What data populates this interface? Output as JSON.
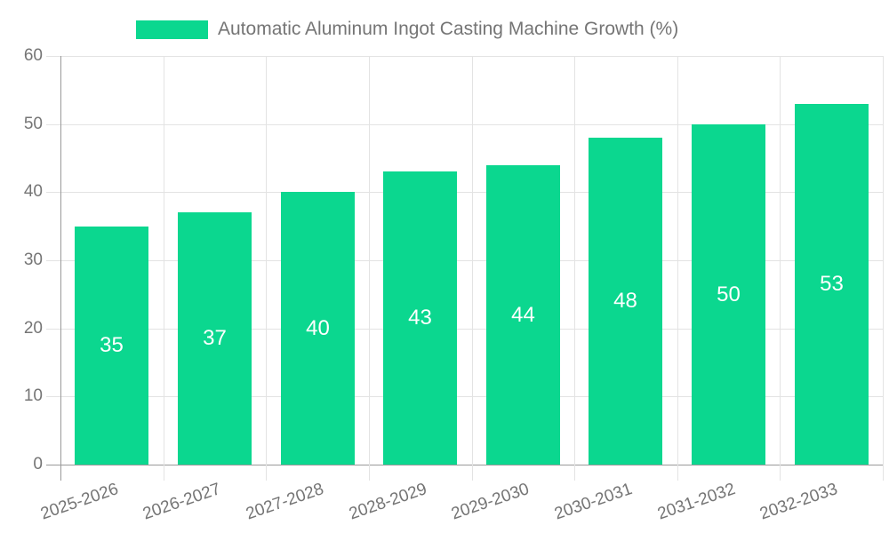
{
  "chart_data": {
    "type": "bar",
    "title": "Automatic Aluminum Ingot Casting Machine Growth (%)",
    "legend": {
      "label": "Automatic Aluminum Ingot Casting Machine Growth (%)",
      "position": "top"
    },
    "categories": [
      "2025-2026",
      "2026-2027",
      "2027-2028",
      "2028-2029",
      "2029-2030",
      "2030-2031",
      "2031-2032",
      "2032-2033"
    ],
    "values": [
      35,
      37,
      40,
      43,
      44,
      48,
      50,
      53
    ],
    "xlabel": "",
    "ylabel": "",
    "ylim": [
      0,
      60
    ],
    "yticks": [
      0,
      10,
      20,
      30,
      40,
      50,
      60
    ],
    "grid": true,
    "bar_value_labels_visible": true,
    "x_tick_label_rotation_deg": -19,
    "colors": {
      "bar": "#0bd78f",
      "bar_label": "#ffffff",
      "axis_line": "#999999",
      "grid_line": "#e3e3e3",
      "axis_text": "#757575",
      "legend_text": "#757575",
      "background": "#ffffff"
    }
  }
}
